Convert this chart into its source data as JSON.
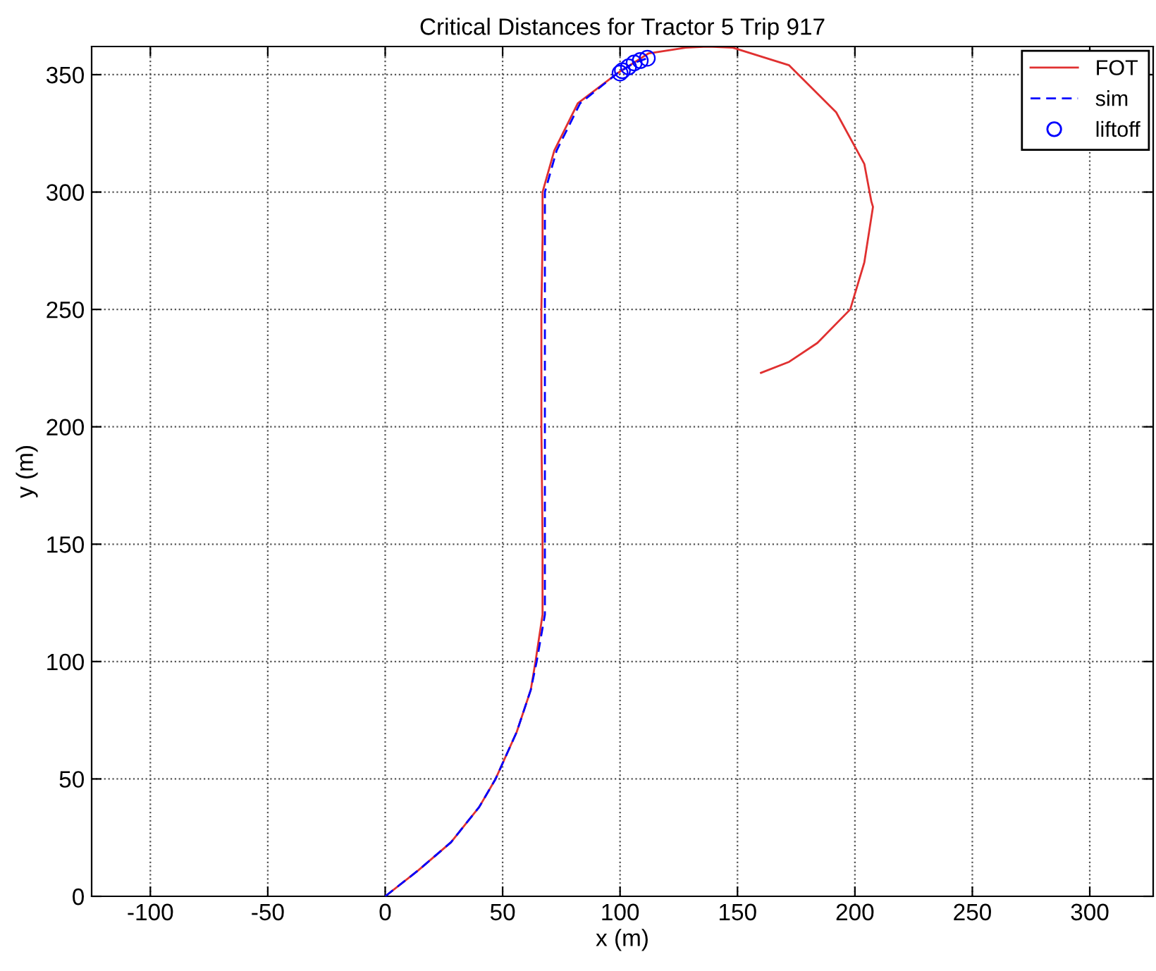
{
  "chart_data": {
    "type": "line",
    "title": "Critical Distances for Tractor 5 Trip 917",
    "xlabel": "x (m)",
    "ylabel": "y (m)",
    "xlim": [
      -125,
      327
    ],
    "ylim": [
      0,
      362
    ],
    "xticks": [
      -100,
      -50,
      0,
      50,
      100,
      150,
      200,
      250,
      300
    ],
    "yticks": [
      0,
      50,
      100,
      150,
      200,
      250,
      300,
      350
    ],
    "grid": true,
    "legend": "top right",
    "series": [
      {
        "name": "FOT",
        "line_style": "solid",
        "color": "#e03030",
        "x": [
          0,
          14,
          28,
          40,
          47,
          56,
          62,
          64,
          67,
          67,
          66.5,
          66.5,
          67,
          67,
          67,
          72,
          82,
          99,
          112,
          128,
          137,
          148,
          172,
          192,
          204,
          207,
          207.7,
          204,
          198,
          184,
          172,
          160
        ],
        "values": [
          0,
          11,
          23,
          38,
          50,
          70,
          88,
          100,
          120,
          150,
          200,
          250,
          280,
          293,
          300,
          317.7,
          337.8,
          350.7,
          359,
          361.5,
          362,
          361.5,
          354,
          334,
          312,
          296,
          293.7,
          270,
          250,
          235.7,
          227.7,
          223
        ]
      },
      {
        "name": "sim",
        "line_style": "dashed",
        "color": "#0000ff",
        "x": [
          0,
          14,
          28,
          40,
          47,
          56,
          62,
          64.5,
          68,
          68,
          68,
          68,
          68,
          68,
          68,
          73,
          83,
          99,
          106,
          111.6
        ],
        "values": [
          0,
          11,
          23,
          38,
          50,
          70,
          88,
          100,
          120,
          150,
          200,
          250,
          280,
          293,
          300,
          317.7,
          337.8,
          350.7,
          355,
          357
        ]
      },
      {
        "name": "liftoff",
        "type": "scatter",
        "marker": "circle",
        "color": "#0000ff",
        "x": [
          100,
          101,
          103.6,
          106,
          108.6,
          111.6
        ],
        "values": [
          350.7,
          351.7,
          353.3,
          355,
          356,
          357
        ]
      }
    ]
  }
}
